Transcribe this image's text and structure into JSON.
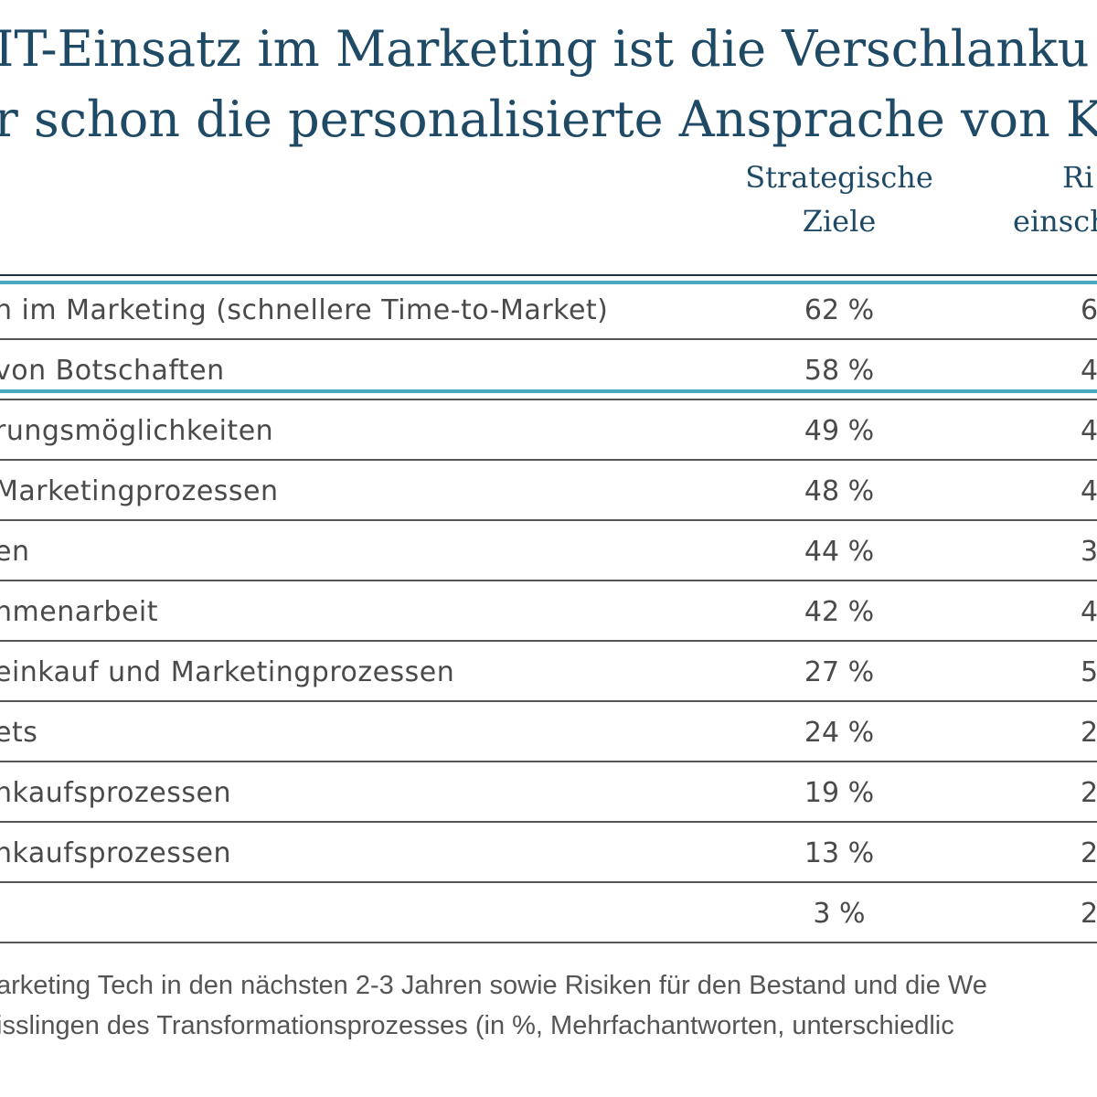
{
  "title_lines": [
    "IT-Einsatz im Marketing ist die Verschlanku",
    "r schon die personalisierte Ansprache von K"
  ],
  "column_headers": [
    [
      "Strategische",
      "Ziele"
    ],
    [
      "Ri",
      "einsch"
    ]
  ],
  "footnote_lines": [
    "arketing Tech in den nächsten 2-3 Jahren sowie Risiken für den Bestand und die We",
    "isslingen des Transformationsprozesses (in %, Mehrfachantworten, unterschiedlic"
  ],
  "chart_data": {
    "type": "table",
    "highlight_rows": [
      0,
      1
    ],
    "rows": [
      {
        "label": "n im Marketing (schnellere Time-to-Market)",
        "strategic": "62 %",
        "second": "6"
      },
      {
        "label": "von Botschaften",
        "strategic": "58 %",
        "second": "4"
      },
      {
        "label": "rungsmöglichkeiten",
        "strategic": "49 %",
        "second": "4"
      },
      {
        "label": "Marketingprozessen",
        "strategic": "48 %",
        "second": "4"
      },
      {
        "label": "en",
        "strategic": "44 %",
        "second": "3"
      },
      {
        "label": "nmenarbeit",
        "strategic": "42 %",
        "second": "4"
      },
      {
        "label": "einkauf und Marketingprozessen",
        "strategic": "27 %",
        "second": "5"
      },
      {
        "label": "ets",
        "strategic": "24 %",
        "second": "2"
      },
      {
        "label": "nkaufsprozessen",
        "strategic": "19 %",
        "second": "2"
      },
      {
        "label": "nkaufsprozessen",
        "strategic": "13 %",
        "second": "2"
      },
      {
        "label": "",
        "strategic": "3 %",
        "second": "2"
      }
    ]
  },
  "colors": {
    "title": "#1f4a66",
    "text": "#4a4a4a",
    "highlight": "#4aa9bd",
    "rule": "#555555"
  }
}
